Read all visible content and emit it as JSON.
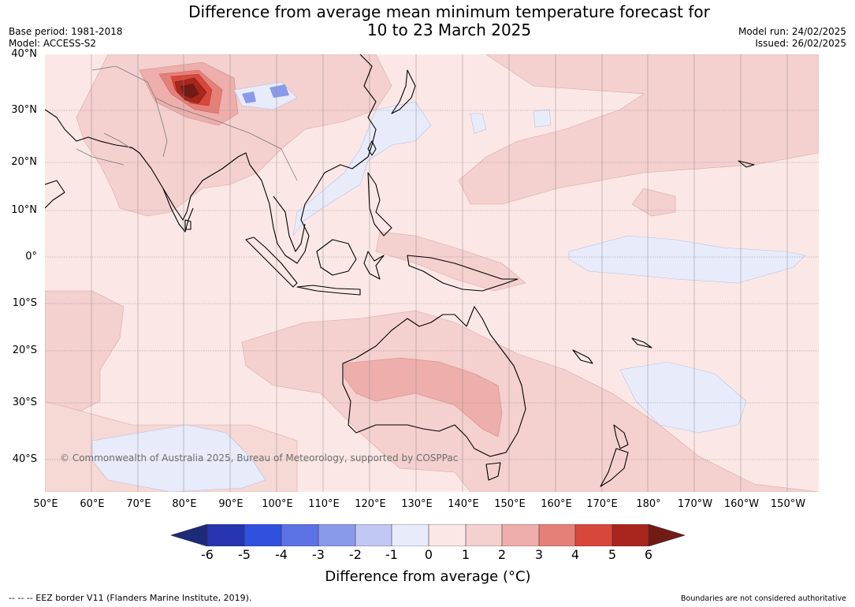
{
  "header": {
    "title_line1": "Difference from average mean minimum temperature forecast for",
    "title_line2": "10 to 23 March 2025",
    "base_period": "Base period: 1981-2018",
    "model": "Model: ACCESS-S2",
    "model_run": "Model run: 24/02/2025",
    "issued": "Issued: 26/02/2025"
  },
  "map": {
    "lat_labels": [
      "40°N",
      "30°N",
      "20°N",
      "10°N",
      "0°",
      "10°S",
      "20°S",
      "30°S",
      "40°S"
    ],
    "lon_labels": [
      "50°E",
      "60°E",
      "70°E",
      "80°E",
      "90°E",
      "100°E",
      "110°E",
      "120°E",
      "130°E",
      "140°E",
      "150°E",
      "160°E",
      "170°E",
      "180°",
      "170°W",
      "160°W",
      "150°W"
    ],
    "copyright": "© Commonwealth of Australia 2025, Bureau of Meteorology, supported by COSPPac"
  },
  "legend": {
    "ticks": [
      "-6",
      "-5",
      "-4",
      "-3",
      "-2",
      "-1",
      "0",
      "1",
      "2",
      "3",
      "4",
      "5",
      "6"
    ],
    "colors": [
      "#1c2a78",
      "#2636b0",
      "#3050de",
      "#5c72e4",
      "#8a9aea",
      "#c2c8f4",
      "#e8ebfa",
      "#fbe8e6",
      "#f4d0ce",
      "#edaeac",
      "#e58079",
      "#d8473b",
      "#a8261e",
      "#721a14"
    ],
    "label": "Difference from average (°C)"
  },
  "footer": {
    "eez": "-- -- -- EEZ border V11 (Flanders Marine Institute, 2019).",
    "boundaries": "Boundaries are not considered authoritative"
  }
}
